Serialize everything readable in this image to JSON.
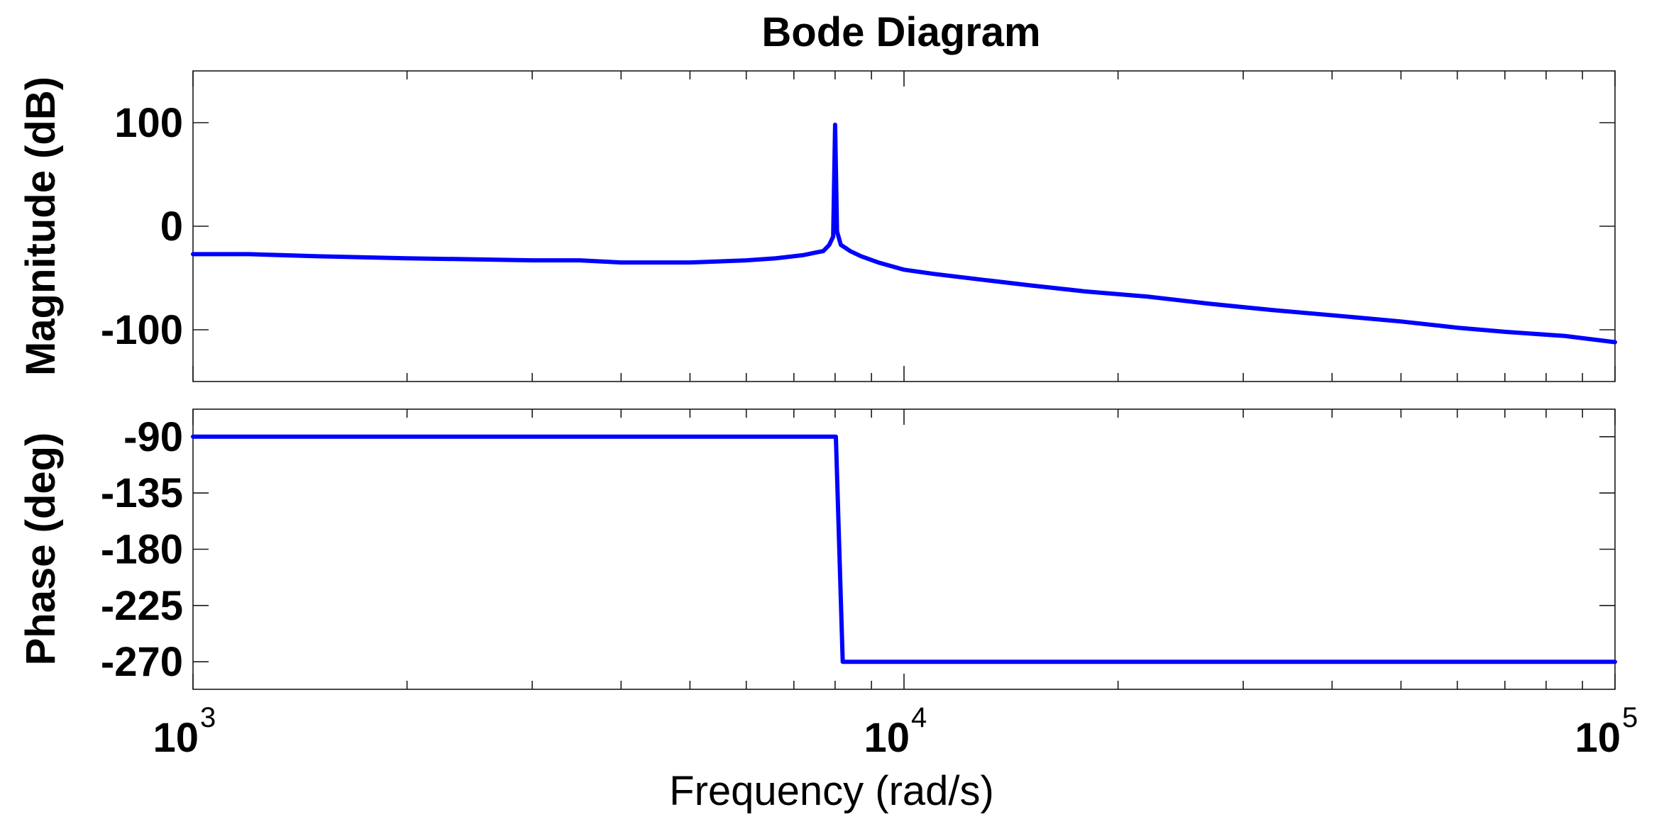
{
  "chart_data": [
    {
      "type": "line",
      "title": "Bode Diagram",
      "ylabel": "Magnitude (dB)",
      "xlabel": "",
      "xscale": "log",
      "xlim": [
        1000,
        100000
      ],
      "ylim": [
        -150,
        150
      ],
      "yticks": [
        100,
        0,
        -100
      ],
      "ytick_labels": [
        "100",
        "0",
        "-100"
      ],
      "grid": false,
      "series": [
        {
          "color": "#0000ff",
          "x": [
            1000,
            1200,
            1500,
            2000,
            2500,
            3000,
            3500,
            4000,
            5000,
            6000,
            6600,
            7200,
            7700,
            7850,
            7950,
            8000,
            8050,
            8150,
            8400,
            8700,
            9200,
            10000,
            11000,
            13000,
            15000,
            18000,
            22000,
            27000,
            33000,
            40000,
            50000,
            60000,
            70000,
            85000,
            100000
          ],
          "y": [
            -27,
            -27,
            -29,
            -31,
            -32,
            -33,
            -33,
            -35,
            -35,
            -33,
            -31,
            -28,
            -24,
            -18,
            -10,
            98,
            -5,
            -18,
            -24,
            -29,
            -35,
            -42,
            -46,
            -52,
            -57,
            -63,
            -68,
            -75,
            -81,
            -86,
            -92,
            -98,
            -102,
            -106,
            -112
          ]
        }
      ]
    },
    {
      "type": "line",
      "title": "",
      "ylabel": "Phase (deg)",
      "xlabel": "Frequency (rad/s)",
      "xscale": "log",
      "xlim": [
        1000,
        100000
      ],
      "ylim": [
        -292,
        -68
      ],
      "yticks": [
        -90,
        -135,
        -180,
        -225,
        -270
      ],
      "ytick_labels": [
        "-90",
        "-135",
        "-180",
        "-225",
        "-270"
      ],
      "xticks": [
        1000,
        10000,
        100000
      ],
      "xtick_labels": [
        {
          "base": "10",
          "exp": "3"
        },
        {
          "base": "10",
          "exp": "4"
        },
        {
          "base": "10",
          "exp": "5"
        }
      ],
      "grid": false,
      "series": [
        {
          "color": "#0000ff",
          "x": [
            1000,
            8020,
            8200,
            100000
          ],
          "y": [
            -90,
            -90,
            -270,
            -270
          ]
        }
      ]
    }
  ]
}
